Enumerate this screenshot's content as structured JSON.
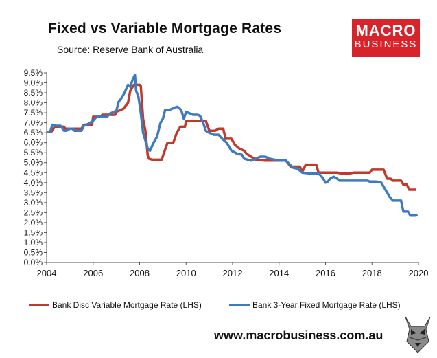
{
  "header": {
    "title": "Fixed vs Variable Mortgage Rates",
    "subtitle": "Source: Reserve Bank of Australia"
  },
  "logo": {
    "line1": "MACRO",
    "line2": "BUSINESS"
  },
  "footer": {
    "website": "www.macrobusiness.com.au"
  },
  "colors": {
    "variable": "#c0392b",
    "fixed": "#3d7bc0"
  },
  "chart_data": {
    "type": "line",
    "xlim": [
      2004,
      2020
    ],
    "ylim": [
      0,
      9.5
    ],
    "x_ticks": [
      "2004",
      "2006",
      "2008",
      "2010",
      "2012",
      "2014",
      "2016",
      "2018",
      "2020"
    ],
    "y_ticks": [
      "0.0%",
      "0.5%",
      "1.0%",
      "1.5%",
      "2.0%",
      "2.5%",
      "3.0%",
      "3.5%",
      "4.0%",
      "4.5%",
      "5.0%",
      "5.5%",
      "6.0%",
      "6.5%",
      "7.0%",
      "7.5%",
      "8.0%",
      "8.5%",
      "9.0%",
      "9.5%"
    ],
    "legend_position": "bottom",
    "grid": false,
    "series": [
      {
        "name": "Bank Disc Variable Mortgage Rate (LHS)",
        "color": "#c0392b",
        "points": [
          [
            2004.0,
            6.55
          ],
          [
            2004.2,
            6.55
          ],
          [
            2004.35,
            6.8
          ],
          [
            2004.75,
            6.8
          ],
          [
            2004.8,
            6.7
          ],
          [
            2005.0,
            6.7
          ],
          [
            2005.2,
            6.7
          ],
          [
            2005.5,
            6.7
          ],
          [
            2005.6,
            6.9
          ],
          [
            2005.95,
            6.9
          ],
          [
            2006.0,
            7.3
          ],
          [
            2006.3,
            7.3
          ],
          [
            2006.4,
            7.4
          ],
          [
            2006.95,
            7.4
          ],
          [
            2007.0,
            7.55
          ],
          [
            2007.3,
            7.7
          ],
          [
            2007.5,
            8.0
          ],
          [
            2007.6,
            8.6
          ],
          [
            2007.75,
            8.9
          ],
          [
            2008.0,
            8.9
          ],
          [
            2008.05,
            8.85
          ],
          [
            2008.15,
            7.2
          ],
          [
            2008.25,
            6.6
          ],
          [
            2008.35,
            5.35
          ],
          [
            2008.4,
            5.2
          ],
          [
            2008.55,
            5.15
          ],
          [
            2008.95,
            5.15
          ],
          [
            2009.05,
            5.5
          ],
          [
            2009.2,
            6.0
          ],
          [
            2009.45,
            6.0
          ],
          [
            2009.6,
            6.5
          ],
          [
            2009.75,
            6.8
          ],
          [
            2009.95,
            6.8
          ],
          [
            2010.0,
            7.1
          ],
          [
            2010.5,
            7.1
          ],
          [
            2010.85,
            7.1
          ],
          [
            2011.0,
            6.6
          ],
          [
            2011.25,
            6.6
          ],
          [
            2011.4,
            6.7
          ],
          [
            2011.6,
            6.7
          ],
          [
            2011.7,
            6.2
          ],
          [
            2011.95,
            6.2
          ],
          [
            2012.1,
            5.9
          ],
          [
            2012.3,
            5.7
          ],
          [
            2012.5,
            5.6
          ],
          [
            2012.6,
            5.45
          ],
          [
            2012.8,
            5.3
          ],
          [
            2013.0,
            5.15
          ],
          [
            2013.4,
            5.1
          ],
          [
            2014.0,
            5.1
          ],
          [
            2014.3,
            5.1
          ],
          [
            2014.5,
            4.8
          ],
          [
            2014.9,
            4.8
          ],
          [
            2015.0,
            4.55
          ],
          [
            2015.15,
            4.9
          ],
          [
            2015.4,
            4.9
          ],
          [
            2015.6,
            4.9
          ],
          [
            2015.7,
            4.5
          ],
          [
            2016.2,
            4.5
          ],
          [
            2016.5,
            4.5
          ],
          [
            2016.7,
            4.45
          ],
          [
            2017.0,
            4.45
          ],
          [
            2017.2,
            4.5
          ],
          [
            2017.9,
            4.5
          ],
          [
            2018.0,
            4.65
          ],
          [
            2018.5,
            4.65
          ],
          [
            2018.65,
            4.2
          ],
          [
            2018.8,
            4.2
          ],
          [
            2018.9,
            4.1
          ],
          [
            2019.25,
            4.1
          ],
          [
            2019.35,
            3.9
          ],
          [
            2019.5,
            3.9
          ],
          [
            2019.6,
            3.65
          ],
          [
            2019.9,
            3.65
          ]
        ]
      },
      {
        "name": "Bank 3-Year Fixed Mortgage Rate (LHS)",
        "color": "#3d7bc0",
        "points": [
          [
            2004.0,
            6.55
          ],
          [
            2004.15,
            6.55
          ],
          [
            2004.25,
            6.9
          ],
          [
            2004.4,
            6.85
          ],
          [
            2004.6,
            6.85
          ],
          [
            2004.75,
            6.6
          ],
          [
            2004.85,
            6.6
          ],
          [
            2005.0,
            6.7
          ],
          [
            2005.1,
            6.7
          ],
          [
            2005.2,
            6.6
          ],
          [
            2005.5,
            6.6
          ],
          [
            2005.6,
            6.85
          ],
          [
            2005.8,
            6.95
          ],
          [
            2006.0,
            7.1
          ],
          [
            2006.15,
            7.3
          ],
          [
            2006.3,
            7.3
          ],
          [
            2006.4,
            7.3
          ],
          [
            2006.6,
            7.3
          ],
          [
            2006.7,
            7.45
          ],
          [
            2007.0,
            7.6
          ],
          [
            2007.1,
            8.05
          ],
          [
            2007.2,
            8.2
          ],
          [
            2007.35,
            8.5
          ],
          [
            2007.5,
            8.9
          ],
          [
            2007.6,
            8.8
          ],
          [
            2007.7,
            9.15
          ],
          [
            2007.8,
            9.4
          ],
          [
            2007.85,
            8.6
          ],
          [
            2007.95,
            8.3
          ],
          [
            2008.05,
            7.5
          ],
          [
            2008.15,
            6.5
          ],
          [
            2008.25,
            6.1
          ],
          [
            2008.35,
            5.7
          ],
          [
            2008.45,
            5.6
          ],
          [
            2008.6,
            6.0
          ],
          [
            2008.75,
            6.3
          ],
          [
            2008.9,
            7.0
          ],
          [
            2009.0,
            7.2
          ],
          [
            2009.1,
            7.65
          ],
          [
            2009.3,
            7.65
          ],
          [
            2009.5,
            7.75
          ],
          [
            2009.6,
            7.8
          ],
          [
            2009.7,
            7.75
          ],
          [
            2009.8,
            7.6
          ],
          [
            2009.9,
            7.2
          ],
          [
            2010.0,
            7.55
          ],
          [
            2010.1,
            7.5
          ],
          [
            2010.3,
            7.4
          ],
          [
            2010.5,
            7.4
          ],
          [
            2010.6,
            7.35
          ],
          [
            2010.75,
            6.95
          ],
          [
            2010.85,
            6.6
          ],
          [
            2011.0,
            6.5
          ],
          [
            2011.2,
            6.4
          ],
          [
            2011.4,
            6.4
          ],
          [
            2011.55,
            6.2
          ],
          [
            2011.75,
            6.0
          ],
          [
            2011.95,
            5.6
          ],
          [
            2012.2,
            5.45
          ],
          [
            2012.4,
            5.4
          ],
          [
            2012.5,
            5.2
          ],
          [
            2012.8,
            5.1
          ],
          [
            2013.0,
            5.2
          ],
          [
            2013.2,
            5.3
          ],
          [
            2013.4,
            5.3
          ],
          [
            2013.6,
            5.2
          ],
          [
            2014.0,
            5.1
          ],
          [
            2014.3,
            5.1
          ],
          [
            2014.6,
            4.75
          ],
          [
            2014.8,
            4.7
          ],
          [
            2014.9,
            4.6
          ],
          [
            2015.0,
            4.5
          ],
          [
            2015.4,
            4.45
          ],
          [
            2015.7,
            4.45
          ],
          [
            2015.8,
            4.35
          ],
          [
            2015.9,
            4.2
          ],
          [
            2016.0,
            4.0
          ],
          [
            2016.1,
            4.05
          ],
          [
            2016.2,
            4.2
          ],
          [
            2016.35,
            4.3
          ],
          [
            2016.5,
            4.2
          ],
          [
            2016.6,
            4.1
          ],
          [
            2017.0,
            4.1
          ],
          [
            2017.4,
            4.1
          ],
          [
            2017.5,
            4.1
          ],
          [
            2017.8,
            4.1
          ],
          [
            2017.9,
            4.05
          ],
          [
            2018.2,
            4.05
          ],
          [
            2018.4,
            4.0
          ],
          [
            2018.55,
            3.7
          ],
          [
            2018.75,
            3.3
          ],
          [
            2018.9,
            3.1
          ],
          [
            2019.25,
            3.1
          ],
          [
            2019.35,
            2.55
          ],
          [
            2019.55,
            2.55
          ],
          [
            2019.65,
            2.35
          ],
          [
            2019.9,
            2.35
          ],
          [
            2019.95,
            2.4
          ]
        ]
      }
    ]
  }
}
